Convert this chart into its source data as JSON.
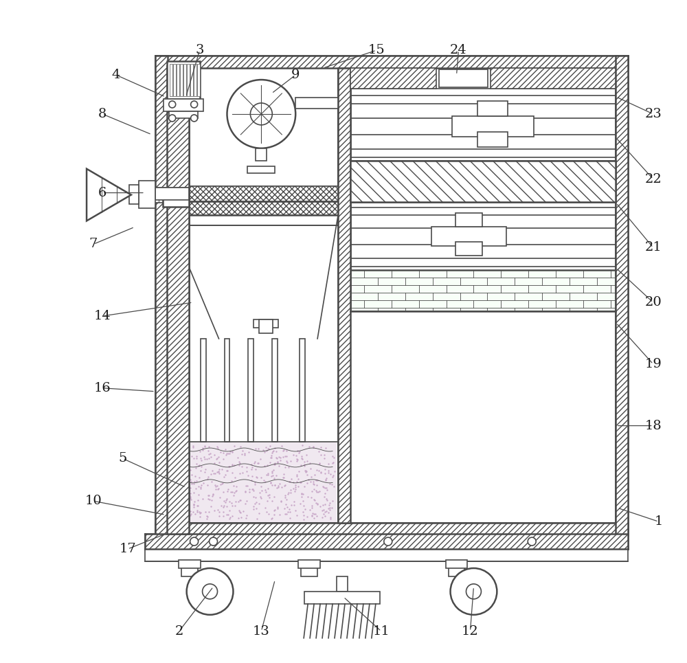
{
  "line_color": "#4a4a4a",
  "bg_color": "#ffffff",
  "label_color": "#1a1a1a",
  "label_fontsize": 14,
  "label_fontfamily": "serif",
  "figsize": [
    10.0,
    9.65
  ],
  "dpi": 100,
  "label_data": [
    [
      "1",
      960,
      760,
      900,
      740
    ],
    [
      "2",
      260,
      920,
      310,
      855
    ],
    [
      "3",
      290,
      72,
      270,
      140
    ],
    [
      "4",
      168,
      108,
      240,
      140
    ],
    [
      "5",
      178,
      668,
      270,
      710
    ],
    [
      "6",
      148,
      280,
      210,
      280
    ],
    [
      "7",
      135,
      355,
      195,
      330
    ],
    [
      "8",
      148,
      165,
      220,
      195
    ],
    [
      "9",
      430,
      108,
      395,
      135
    ],
    [
      "10",
      135,
      730,
      240,
      750
    ],
    [
      "11",
      555,
      920,
      500,
      870
    ],
    [
      "12",
      685,
      920,
      690,
      855
    ],
    [
      "13",
      380,
      920,
      400,
      845
    ],
    [
      "14",
      148,
      460,
      280,
      440
    ],
    [
      "15",
      548,
      72,
      470,
      98
    ],
    [
      "16",
      148,
      565,
      225,
      570
    ],
    [
      "17",
      185,
      800,
      240,
      778
    ],
    [
      "18",
      952,
      620,
      898,
      620
    ],
    [
      "19",
      952,
      530,
      898,
      470
    ],
    [
      "20",
      952,
      440,
      898,
      390
    ],
    [
      "21",
      952,
      360,
      898,
      295
    ],
    [
      "22",
      952,
      260,
      898,
      200
    ],
    [
      "23",
      952,
      165,
      898,
      140
    ],
    [
      "24",
      668,
      72,
      665,
      108
    ]
  ]
}
